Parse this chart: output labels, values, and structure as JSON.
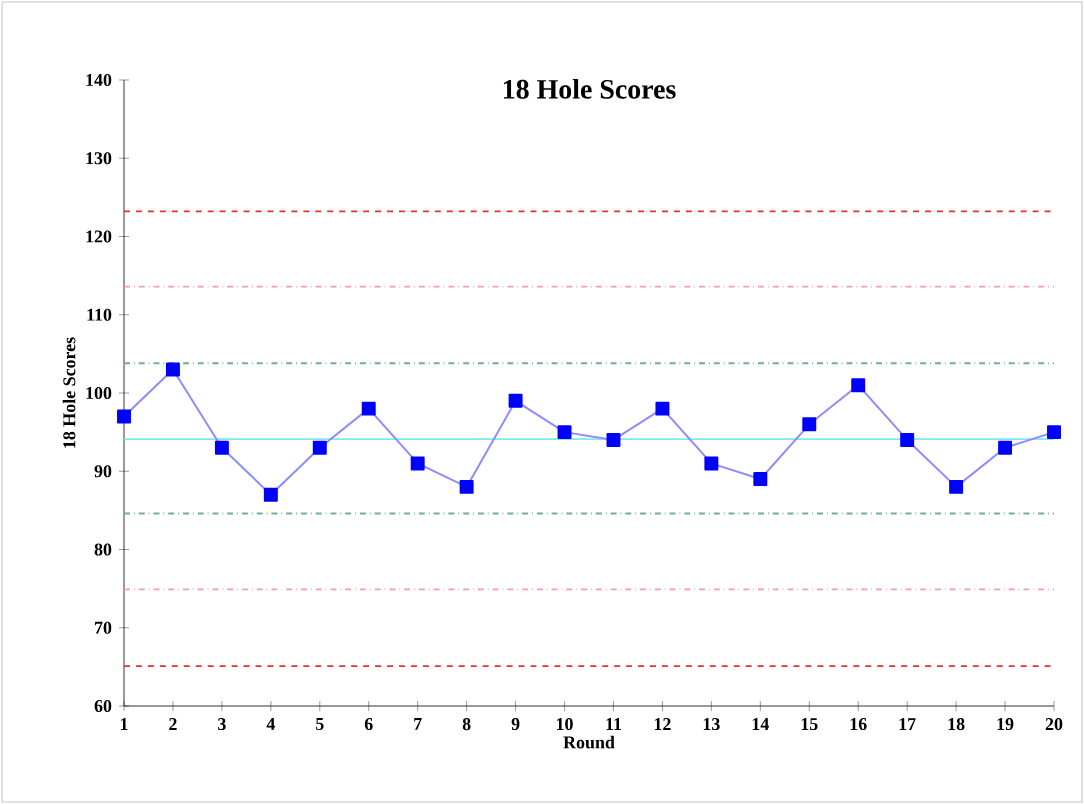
{
  "chart_data": {
    "type": "line",
    "title": "18 Hole Scores",
    "xlabel": "Round",
    "ylabel": "18 Hole Scores",
    "x": [
      1,
      2,
      3,
      4,
      5,
      6,
      7,
      8,
      9,
      10,
      11,
      12,
      13,
      14,
      15,
      16,
      17,
      18,
      19,
      20
    ],
    "series": [
      {
        "color": "#0000ff",
        "values": [
          97,
          103,
          93,
          87,
          93,
          98,
          91,
          88,
          99,
          95,
          94,
          98,
          91,
          89,
          96,
          101,
          94,
          88,
          93,
          95
        ]
      }
    ],
    "marker": "square",
    "line_style": "solid",
    "xlim": [
      1,
      20
    ],
    "xticks": [
      1,
      2,
      3,
      4,
      5,
      6,
      7,
      8,
      9,
      10,
      11,
      12,
      13,
      14,
      15,
      16,
      17,
      18,
      19,
      20
    ],
    "ylim": [
      60,
      140
    ],
    "yticks": [
      60,
      70,
      80,
      90,
      100,
      110,
      120,
      130,
      140
    ],
    "ref_lines": [
      {
        "axis": "y",
        "value": 123.2,
        "color": "#e83030",
        "line_style": "dashed"
      },
      {
        "axis": "y",
        "value": 113.6,
        "color": "#f4a0a0",
        "line_style": "dotted"
      },
      {
        "axis": "y",
        "value": 103.8,
        "color": "#70b090",
        "line_style": "dotted"
      },
      {
        "axis": "y",
        "value": 94.1,
        "color": "#80e8f0",
        "line_style": "solid"
      },
      {
        "axis": "y",
        "value": 84.6,
        "color": "#70b090",
        "line_style": "dotted"
      },
      {
        "axis": "y",
        "value": 74.9,
        "color": "#f4a0a0",
        "line_style": "dotted"
      },
      {
        "axis": "y",
        "value": 65.1,
        "color": "#e83030",
        "line_style": "dashed"
      }
    ]
  }
}
